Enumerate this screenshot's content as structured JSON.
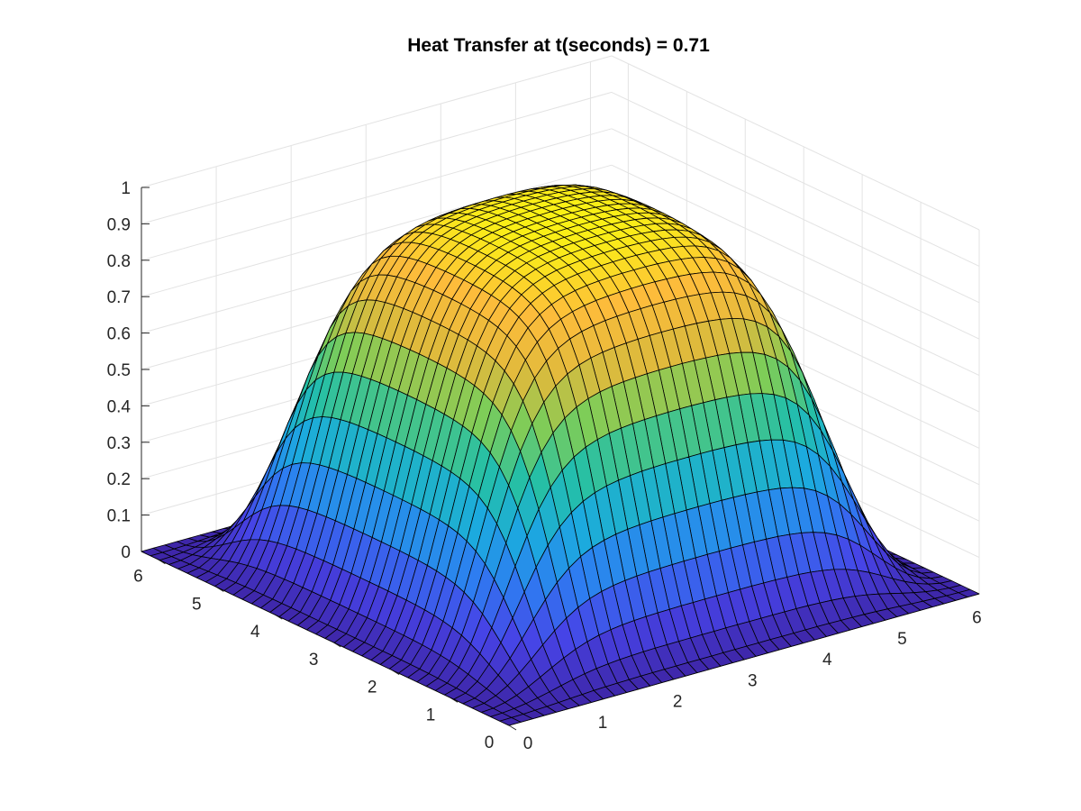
{
  "chart_data": {
    "type": "surface3d",
    "title": "Heat Transfer at t(seconds) = 0.71",
    "xlabel": "",
    "ylabel": "",
    "zlabel": "",
    "x_ticks": [
      "0",
      "1",
      "2",
      "3",
      "4",
      "5",
      "6"
    ],
    "y_ticks": [
      "0",
      "1",
      "2",
      "3",
      "4",
      "5",
      "6"
    ],
    "z_ticks": [
      "0",
      "0.1",
      "0.2",
      "0.3",
      "0.4",
      "0.5",
      "0.6",
      "0.7",
      "0.8",
      "0.9",
      "1"
    ],
    "xlim": [
      0,
      6.2832
    ],
    "ylim": [
      0,
      6.2832
    ],
    "zlim": [
      0,
      1
    ],
    "grid": true,
    "colormap": "parula",
    "colormap_stops": [
      "#3e26a8",
      "#4743e6",
      "#2e7cf1",
      "#1caadf",
      "#24bfa8",
      "#7ccd59",
      "#e0ba3c",
      "#fdbc3b",
      "#f9fb0e"
    ],
    "edge_color": "#000000",
    "grid_size": 40,
    "surface_model": "u(x,y) = tanh(2.6*sin(x/2)^2) * tanh(2.6*sin(y/2)^2)",
    "peak_value": 0.98,
    "corner_value": 0.0
  }
}
